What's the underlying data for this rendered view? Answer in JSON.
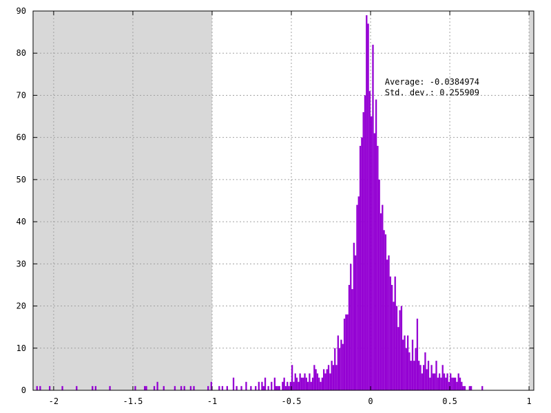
{
  "chart_data": {
    "type": "bar",
    "title": "",
    "xlabel": "",
    "ylabel": "",
    "xlim": [
      -2.13,
      1.03
    ],
    "ylim": [
      0,
      90
    ],
    "grid": true,
    "bar_color": "#9400d3",
    "shade_color": "#d8d8d8",
    "shaded_regions": [
      [
        -2.13,
        -1.0
      ],
      [
        1.0,
        1.03
      ]
    ],
    "xticks": [
      {
        "value": -2,
        "label": "-2"
      },
      {
        "value": -1.5,
        "label": "-1.5"
      },
      {
        "value": -1,
        "label": "-1"
      },
      {
        "value": -0.5,
        "label": "-0.5"
      },
      {
        "value": 0,
        "label": "0"
      },
      {
        "value": 0.5,
        "label": "0.5"
      },
      {
        "value": 1,
        "label": "1"
      }
    ],
    "yticks": [
      {
        "value": 0,
        "label": "0"
      },
      {
        "value": 10,
        "label": "10"
      },
      {
        "value": 20,
        "label": "20"
      },
      {
        "value": 30,
        "label": "30"
      },
      {
        "value": 40,
        "label": "40"
      },
      {
        "value": 50,
        "label": "50"
      },
      {
        "value": 60,
        "label": "60"
      },
      {
        "value": 70,
        "label": "70"
      },
      {
        "value": 80,
        "label": "80"
      },
      {
        "value": 90,
        "label": "90"
      }
    ],
    "annotations": [
      {
        "text": "Average: -0.0384974",
        "x": 0.09,
        "y": 72.5
      },
      {
        "text": "Std. dev.: 0.255909",
        "x": 0.09,
        "y": 70.0
      }
    ],
    "bin_width": 0.01,
    "bins": [
      [
        -2.11,
        1
      ],
      [
        -2.09,
        1
      ],
      [
        -2.03,
        1
      ],
      [
        -1.95,
        1
      ],
      [
        -1.86,
        1
      ],
      [
        -1.76,
        1
      ],
      [
        -1.74,
        1
      ],
      [
        -1.65,
        1
      ],
      [
        -1.49,
        1
      ],
      [
        -1.43,
        1
      ],
      [
        -1.42,
        1
      ],
      [
        -1.37,
        1
      ],
      [
        -1.35,
        2
      ],
      [
        -1.31,
        1
      ],
      [
        -1.24,
        1
      ],
      [
        -1.2,
        1
      ],
      [
        -1.18,
        1
      ],
      [
        -1.14,
        1
      ],
      [
        -1.12,
        1
      ],
      [
        -1.03,
        1
      ],
      [
        -1.01,
        2
      ],
      [
        -0.96,
        1
      ],
      [
        -0.94,
        1
      ],
      [
        -0.91,
        1
      ],
      [
        -0.87,
        3
      ],
      [
        -0.85,
        1
      ],
      [
        -0.82,
        1
      ],
      [
        -0.79,
        2
      ],
      [
        -0.76,
        1
      ],
      [
        -0.73,
        1
      ],
      [
        -0.71,
        2
      ],
      [
        -0.69,
        2
      ],
      [
        -0.68,
        1
      ],
      [
        -0.67,
        3
      ],
      [
        -0.65,
        1
      ],
      [
        -0.63,
        2
      ],
      [
        -0.61,
        3
      ],
      [
        -0.6,
        1
      ],
      [
        -0.59,
        1
      ],
      [
        -0.58,
        1
      ],
      [
        -0.56,
        2
      ],
      [
        -0.55,
        3
      ],
      [
        -0.54,
        1
      ],
      [
        -0.53,
        2
      ],
      [
        -0.52,
        1
      ],
      [
        -0.51,
        2
      ],
      [
        -0.5,
        6
      ],
      [
        -0.49,
        2
      ],
      [
        -0.48,
        4
      ],
      [
        -0.47,
        3
      ],
      [
        -0.46,
        2
      ],
      [
        -0.45,
        4
      ],
      [
        -0.44,
        3
      ],
      [
        -0.43,
        3
      ],
      [
        -0.42,
        4
      ],
      [
        -0.41,
        3
      ],
      [
        -0.4,
        2
      ],
      [
        -0.39,
        4
      ],
      [
        -0.38,
        2
      ],
      [
        -0.37,
        3
      ],
      [
        -0.36,
        6
      ],
      [
        -0.35,
        5
      ],
      [
        -0.34,
        4
      ],
      [
        -0.33,
        3
      ],
      [
        -0.32,
        2
      ],
      [
        -0.31,
        3
      ],
      [
        -0.3,
        5
      ],
      [
        -0.29,
        4
      ],
      [
        -0.28,
        5
      ],
      [
        -0.27,
        6
      ],
      [
        -0.26,
        4
      ],
      [
        -0.25,
        7
      ],
      [
        -0.24,
        6
      ],
      [
        -0.23,
        10
      ],
      [
        -0.22,
        6
      ],
      [
        -0.21,
        13
      ],
      [
        -0.2,
        10
      ],
      [
        -0.19,
        12
      ],
      [
        -0.18,
        11
      ],
      [
        -0.17,
        17
      ],
      [
        -0.16,
        18
      ],
      [
        -0.15,
        18
      ],
      [
        -0.14,
        25
      ],
      [
        -0.13,
        30
      ],
      [
        -0.12,
        24
      ],
      [
        -0.11,
        35
      ],
      [
        -0.1,
        32
      ],
      [
        -0.09,
        44
      ],
      [
        -0.08,
        46
      ],
      [
        -0.07,
        58
      ],
      [
        -0.06,
        60
      ],
      [
        -0.05,
        66
      ],
      [
        -0.04,
        70
      ],
      [
        -0.03,
        89
      ],
      [
        -0.02,
        87
      ],
      [
        -0.01,
        71
      ],
      [
        0.0,
        65
      ],
      [
        0.01,
        82
      ],
      [
        0.02,
        61
      ],
      [
        0.03,
        69
      ],
      [
        0.04,
        58
      ],
      [
        0.05,
        50
      ],
      [
        0.06,
        42
      ],
      [
        0.07,
        44
      ],
      [
        0.08,
        38
      ],
      [
        0.09,
        37
      ],
      [
        0.1,
        31
      ],
      [
        0.11,
        32
      ],
      [
        0.12,
        27
      ],
      [
        0.13,
        25
      ],
      [
        0.14,
        21
      ],
      [
        0.15,
        27
      ],
      [
        0.16,
        20
      ],
      [
        0.17,
        15
      ],
      [
        0.18,
        19
      ],
      [
        0.19,
        20
      ],
      [
        0.2,
        12
      ],
      [
        0.21,
        13
      ],
      [
        0.22,
        10
      ],
      [
        0.23,
        13
      ],
      [
        0.24,
        9
      ],
      [
        0.25,
        7
      ],
      [
        0.26,
        12
      ],
      [
        0.27,
        7
      ],
      [
        0.28,
        10
      ],
      [
        0.29,
        17
      ],
      [
        0.3,
        7
      ],
      [
        0.31,
        6
      ],
      [
        0.32,
        4
      ],
      [
        0.33,
        6
      ],
      [
        0.34,
        9
      ],
      [
        0.35,
        5
      ],
      [
        0.36,
        7
      ],
      [
        0.37,
        3
      ],
      [
        0.38,
        6
      ],
      [
        0.39,
        4
      ],
      [
        0.4,
        4
      ],
      [
        0.41,
        7
      ],
      [
        0.42,
        3
      ],
      [
        0.43,
        4
      ],
      [
        0.44,
        3
      ],
      [
        0.45,
        6
      ],
      [
        0.46,
        4
      ],
      [
        0.47,
        3
      ],
      [
        0.48,
        4
      ],
      [
        0.49,
        2
      ],
      [
        0.5,
        4
      ],
      [
        0.51,
        3
      ],
      [
        0.52,
        3
      ],
      [
        0.53,
        3
      ],
      [
        0.54,
        2
      ],
      [
        0.55,
        4
      ],
      [
        0.56,
        3
      ],
      [
        0.57,
        2
      ],
      [
        0.58,
        1
      ],
      [
        0.59,
        1
      ],
      [
        0.62,
        1
      ],
      [
        0.63,
        1
      ],
      [
        0.7,
        1
      ]
    ]
  }
}
